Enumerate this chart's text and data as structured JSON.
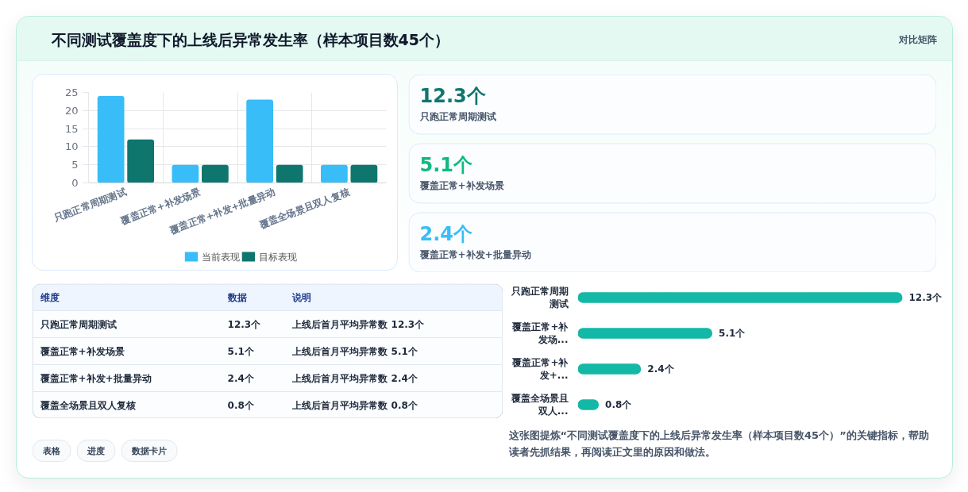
{
  "chart_data": [
    {
      "type": "other",
      "title": "不同测试覆盖度下的上线后异常发生率（样本项目数45个）",
      "annotations": [
        "对比矩阵"
      ]
    },
    {
      "type": "bar",
      "categories": [
        "只跑正常周期测试",
        "覆盖正常+补发场景",
        "覆盖正常+补发+批量异动",
        "覆盖全场景且双人复核"
      ],
      "series": [
        {
          "name": "当前表现",
          "color": "#38bdf8",
          "values": [
            24,
            5,
            23,
            5
          ]
        },
        {
          "name": "目标表现",
          "color": "#0f766e",
          "values": [
            12,
            5,
            5,
            5
          ]
        }
      ],
      "ylim": [
        0,
        25
      ],
      "yticks": [
        0,
        5,
        10,
        15,
        20,
        25
      ],
      "grid": true,
      "legend": "bottom"
    },
    {
      "type": "other",
      "categories": [
        "只跑正常周期测试",
        "覆盖正常+补发场景",
        "覆盖正常+补发+批量异动"
      ],
      "value_labels": [
        "12.3个",
        "5.1个",
        "2.4个"
      ]
    },
    {
      "type": "other",
      "categories": [
        "维度",
        "数据",
        "说明"
      ],
      "cell_labels": [
        [
          "只跑正常周期测试",
          "12.3个",
          "上线后首月平均异常数 12.3个"
        ],
        [
          "覆盖正常+补发场景",
          "5.1个",
          "上线后首月平均异常数 5.1个"
        ],
        [
          "覆盖正常+补发+批量异动",
          "2.4个",
          "上线后首月平均异常数 2.4个"
        ],
        [
          "覆盖全场景且双人复核",
          "0.8个",
          "上线后首月平均异常数 0.8个"
        ]
      ]
    },
    {
      "type": "bar",
      "orientation": "horizontal",
      "categories": [
        "只跑正常周期测试",
        "覆盖正常+补发场...",
        "覆盖正常+补发+...",
        "覆盖全场景且双人..."
      ],
      "values": [
        12.3,
        5.1,
        2.4,
        0.8
      ],
      "value_labels": [
        "12.3个",
        "5.1个",
        "2.4个",
        "0.8个"
      ],
      "color": "#14b8a6",
      "tick_labels": "y"
    },
    {
      "type": "other",
      "categories": [
        "表格",
        "进度",
        "数据卡片"
      ],
      "annotations": [
        "这张图提炼“不同测试覆盖度下的上线后异常发生率（样本项目数45个）”的关键指标，帮助读者先抓结果，再阅读正文里的原因和做法。"
      ]
    }
  ]
}
